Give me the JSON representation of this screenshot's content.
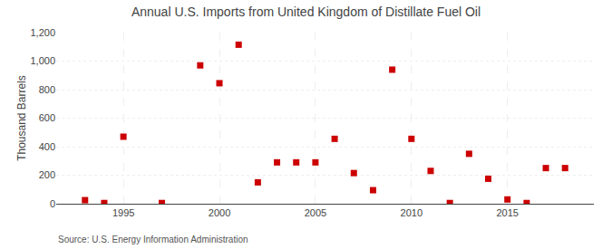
{
  "chart_data": {
    "type": "scatter",
    "title": "Annual U.S. Imports from United Kingdom of Distillate Fuel Oil",
    "ylabel": "Thousand Barrels",
    "annotations": [
      "Source: U.S. Energy Information Administration"
    ],
    "x": [
      1993,
      1994,
      1995,
      1997,
      1999,
      2000,
      2001,
      2002,
      2003,
      2004,
      2005,
      2006,
      2007,
      2008,
      2009,
      2010,
      2011,
      2012,
      2013,
      2014,
      2015,
      2016,
      2017,
      2018
    ],
    "values": [
      25,
      5,
      470,
      5,
      970,
      845,
      1115,
      150,
      290,
      290,
      290,
      455,
      215,
      95,
      940,
      455,
      230,
      5,
      350,
      175,
      30,
      5,
      250,
      250
    ],
    "color": "#cc0000",
    "marker": "square",
    "xlim": [
      1991.5,
      2019.5
    ],
    "xticks": [
      1995,
      2000,
      2005,
      2010,
      2015
    ],
    "ylim": [
      0,
      1200
    ],
    "yticks": [
      0,
      200,
      400,
      600,
      800,
      {
        "value": 1000,
        "label": "1,000"
      },
      {
        "value": 1200,
        "label": "1,200"
      }
    ],
    "grid": true
  }
}
